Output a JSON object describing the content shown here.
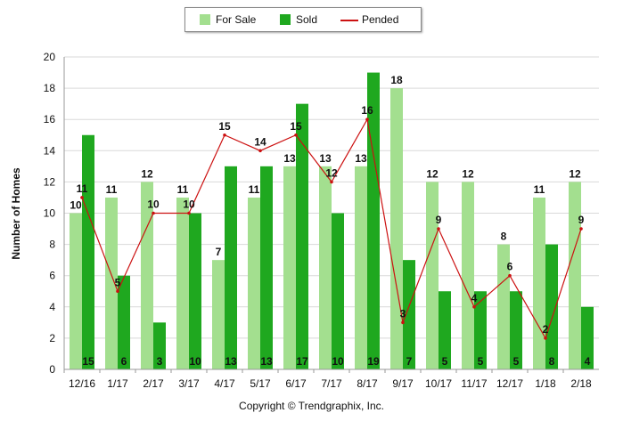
{
  "chart_data": {
    "type": "bar",
    "title": "",
    "xlabel": "",
    "ylabel": "Number of Homes",
    "ylim": [
      0,
      20
    ],
    "yticks": [
      0,
      2,
      4,
      6,
      8,
      10,
      12,
      14,
      16,
      18,
      20
    ],
    "grid": true,
    "legend_position": "top-center",
    "categories": [
      "12/16",
      "1/17",
      "2/17",
      "3/17",
      "4/17",
      "5/17",
      "6/17",
      "7/17",
      "8/17",
      "9/17",
      "10/17",
      "11/17",
      "12/17",
      "1/18",
      "2/18"
    ],
    "series": [
      {
        "name": "For Sale",
        "kind": "bar",
        "color": "#a3df8f",
        "values": [
          10,
          11,
          12,
          11,
          7,
          11,
          13,
          13,
          13,
          18,
          12,
          12,
          8,
          11,
          12
        ]
      },
      {
        "name": "Sold",
        "kind": "bar",
        "color": "#1fa81f",
        "values": [
          15,
          6,
          3,
          10,
          13,
          13,
          17,
          10,
          19,
          7,
          5,
          5,
          5,
          8,
          4
        ]
      },
      {
        "name": "Pended",
        "kind": "line",
        "color": "#cc1111",
        "values": [
          11,
          5,
          10,
          10,
          15,
          14,
          15,
          12,
          16,
          3,
          9,
          4,
          6,
          2,
          9
        ]
      }
    ]
  },
  "legend": {
    "for_sale": "For Sale",
    "sold": "Sold",
    "pended": "Pended"
  },
  "footer": {
    "copyright": "Copyright © Trendgraphix, Inc."
  }
}
